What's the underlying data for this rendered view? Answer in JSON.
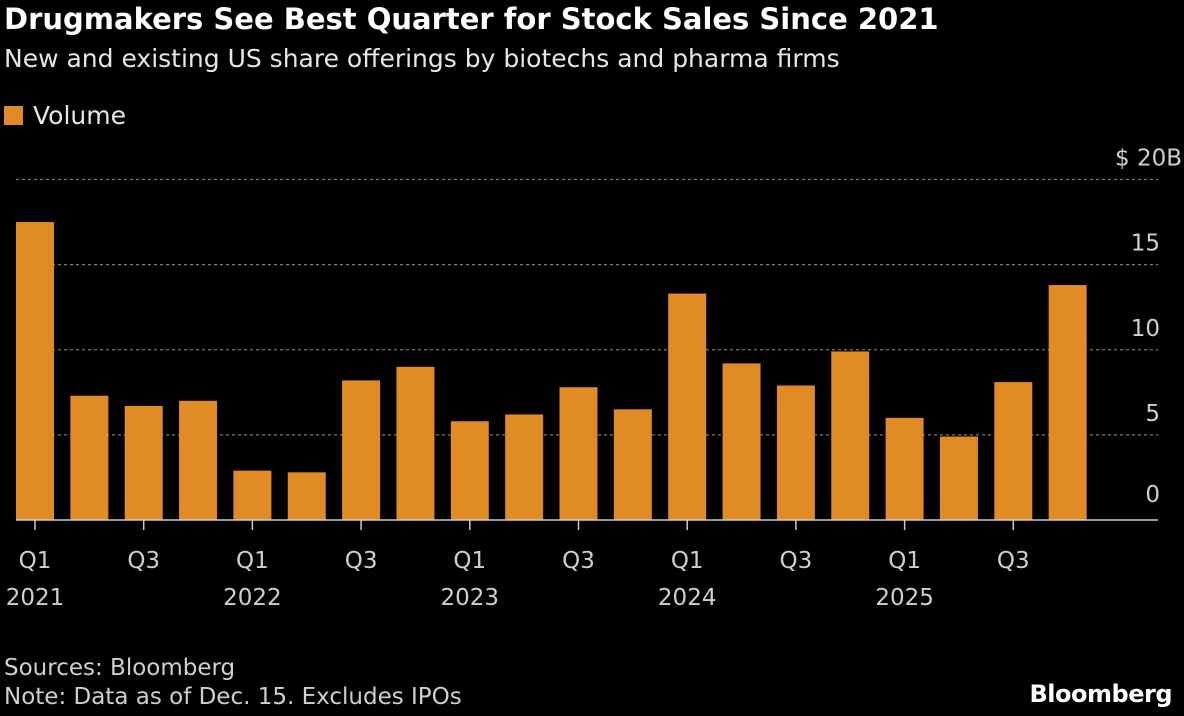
{
  "header": {
    "title": "Drugmakers See Best Quarter for Stock Sales Since 2021",
    "subtitle": "New and existing US share offerings by biotechs and pharma firms"
  },
  "footer": {
    "source": "Sources: Bloomberg",
    "note": "Note: Data as of Dec. 15. Excludes IPOs",
    "logo": "Bloomberg"
  },
  "colors": {
    "bar": "#e08b24",
    "background": "#000000",
    "grid": "#777777"
  },
  "chart_data": {
    "type": "bar",
    "legend": {
      "placement": "top-left",
      "entries": [
        {
          "name": "Volume",
          "color": "#e08b24"
        }
      ]
    },
    "series": [
      {
        "name": "Volume",
        "values": [
          17.5,
          7.3,
          6.7,
          7.0,
          2.9,
          2.8,
          8.2,
          9.0,
          5.8,
          6.2,
          7.8,
          6.5,
          13.3,
          9.2,
          7.9,
          9.9,
          6.0,
          4.9,
          8.1,
          13.8
        ]
      }
    ],
    "categories": [
      "Q1 2021",
      "Q2 2021",
      "Q3 2021",
      "Q4 2021",
      "Q1 2022",
      "Q2 2022",
      "Q3 2022",
      "Q4 2022",
      "Q1 2023",
      "Q2 2023",
      "Q3 2023",
      "Q4 2023",
      "Q1 2024",
      "Q2 2024",
      "Q3 2024",
      "Q4 2024",
      "Q1 2025",
      "Q2 2025",
      "Q3 2025",
      "Q4 2025"
    ],
    "x_ticks": [
      {
        "index": 0,
        "label": "Q1",
        "year": "2021"
      },
      {
        "index": 2,
        "label": "Q3",
        "year": ""
      },
      {
        "index": 4,
        "label": "Q1",
        "year": "2022"
      },
      {
        "index": 6,
        "label": "Q3",
        "year": ""
      },
      {
        "index": 8,
        "label": "Q1",
        "year": "2023"
      },
      {
        "index": 10,
        "label": "Q3",
        "year": ""
      },
      {
        "index": 12,
        "label": "Q1",
        "year": "2024"
      },
      {
        "index": 14,
        "label": "Q3",
        "year": ""
      },
      {
        "index": 16,
        "label": "Q1",
        "year": "2025"
      },
      {
        "index": 18,
        "label": "Q3",
        "year": ""
      }
    ],
    "y_ticks": [
      {
        "value": 0,
        "label": "0"
      },
      {
        "value": 5,
        "label": "5"
      },
      {
        "value": 10,
        "label": "10"
      },
      {
        "value": 15,
        "label": "15"
      },
      {
        "value": 20,
        "label": "$ 20B"
      }
    ],
    "ylim": [
      0,
      20
    ],
    "grid": true,
    "xlabel": "",
    "ylabel": ""
  }
}
